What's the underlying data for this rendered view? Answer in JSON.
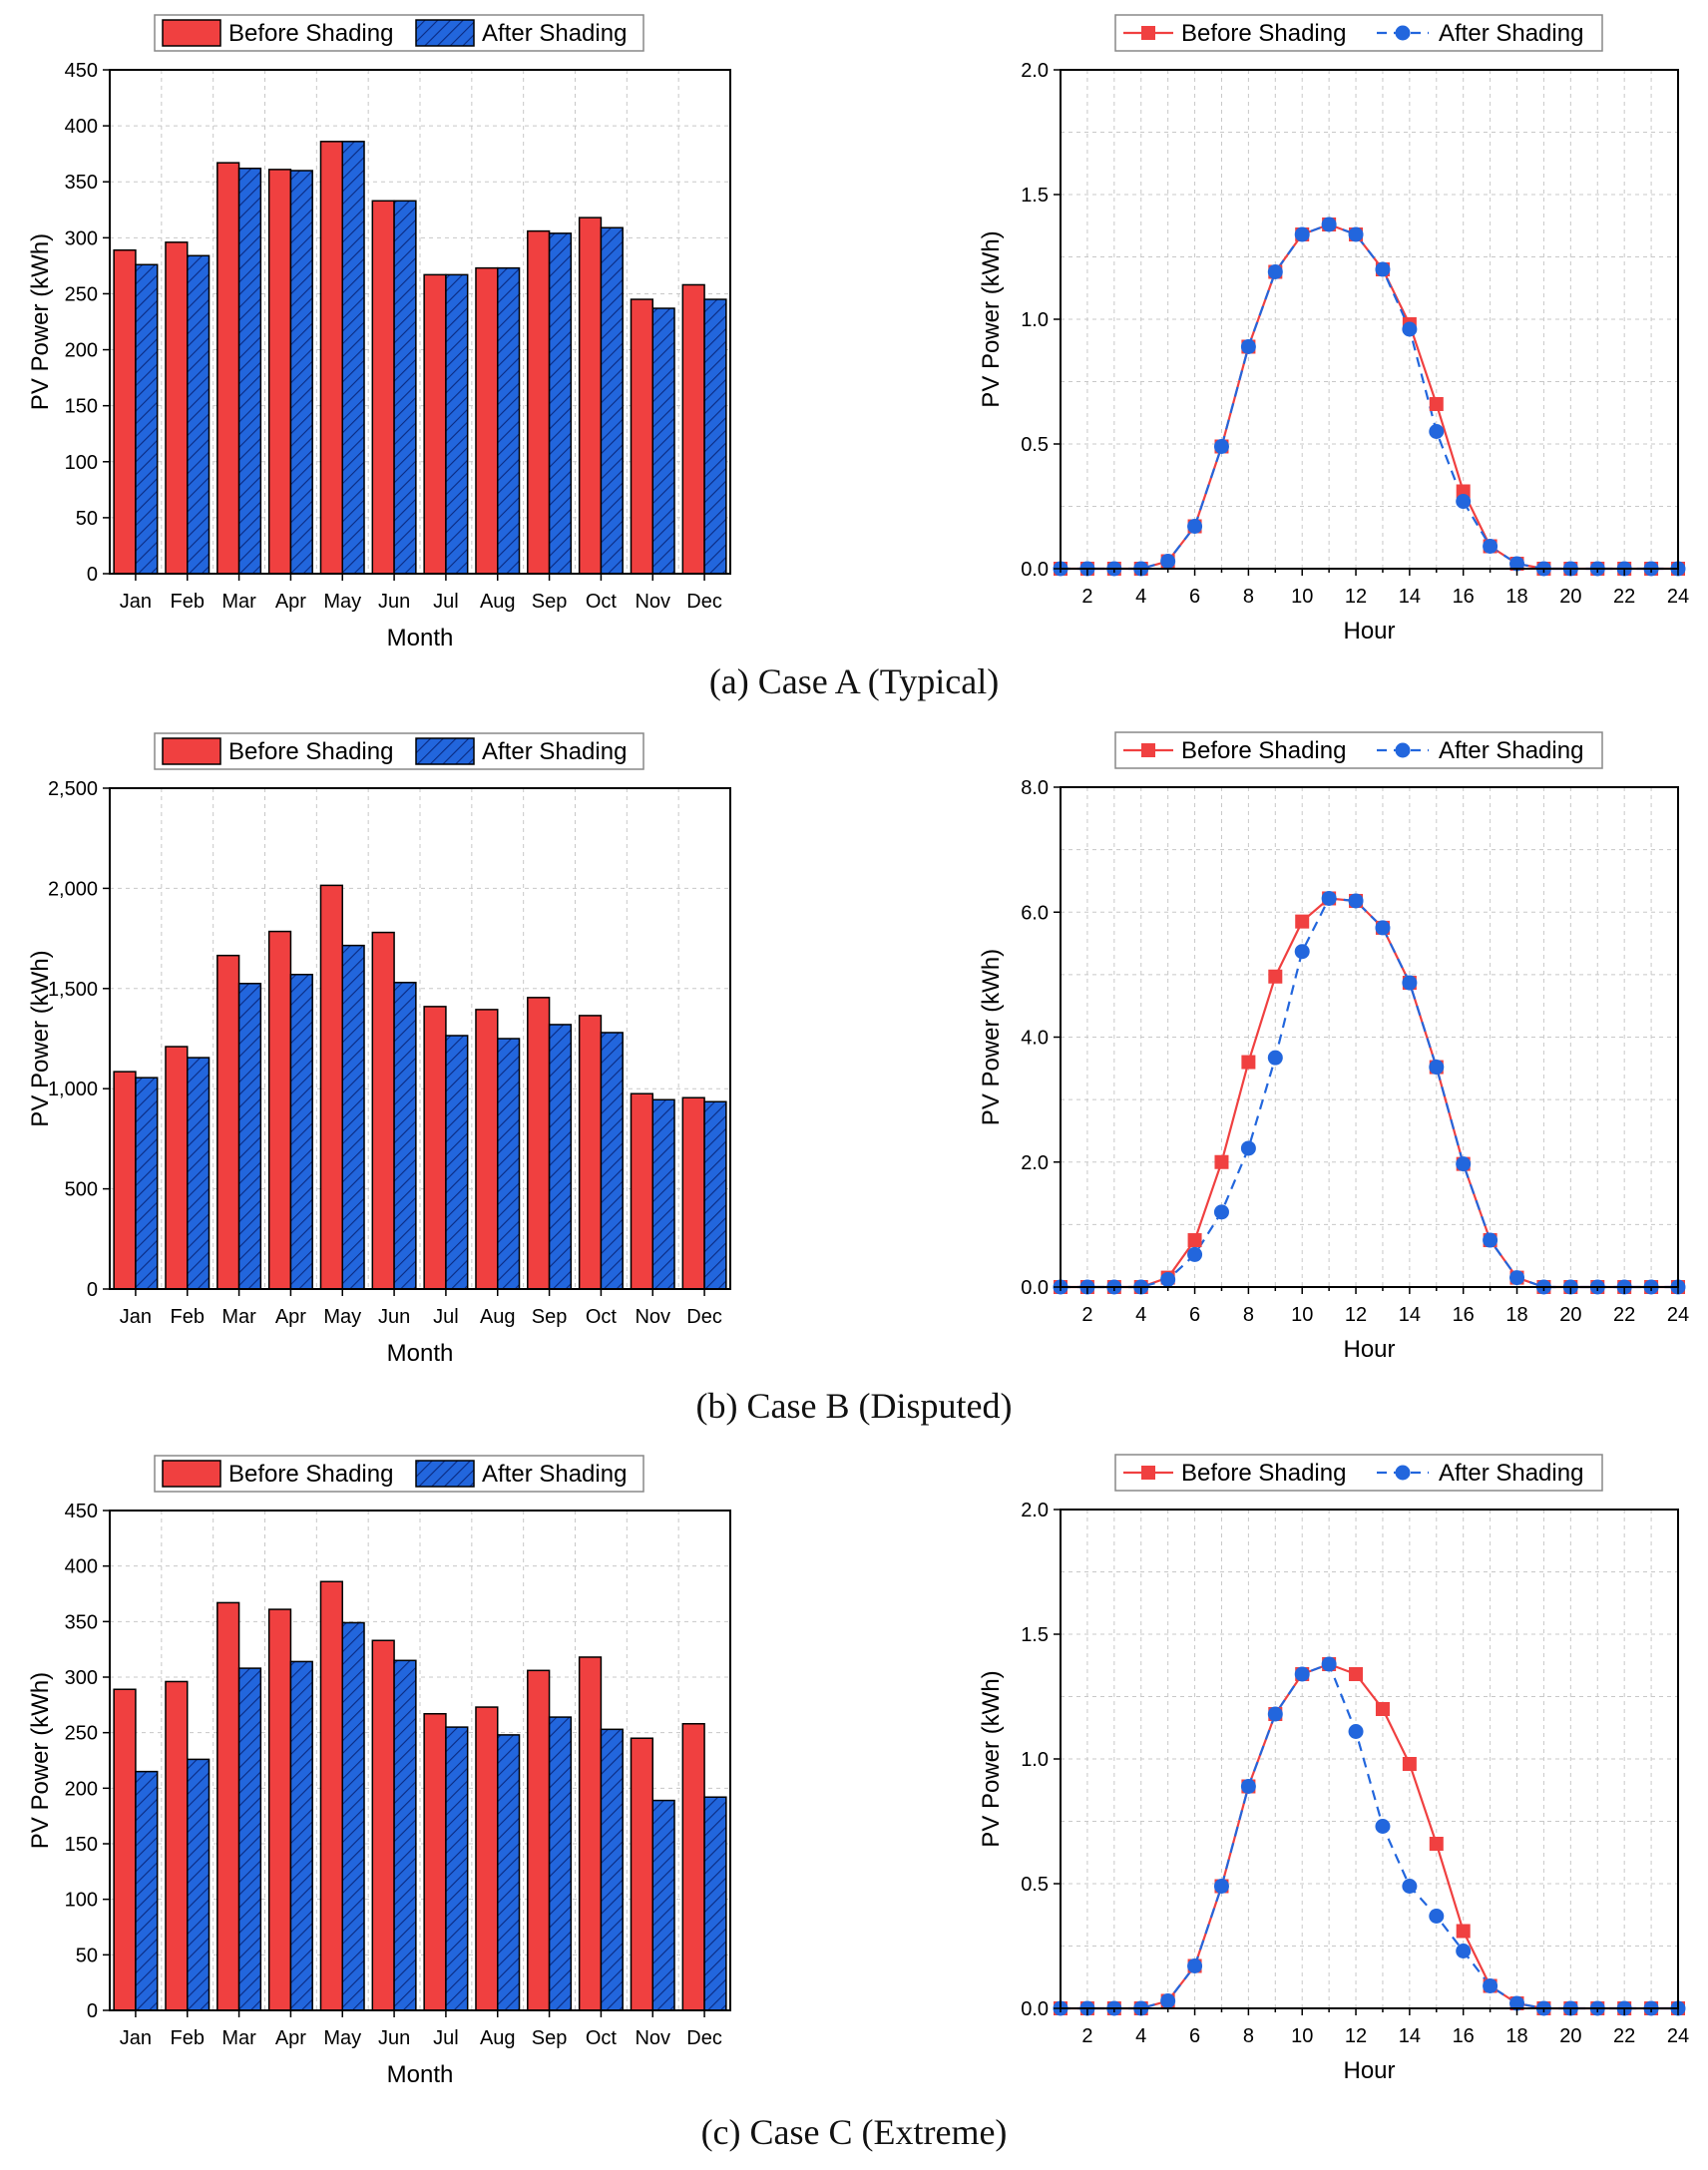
{
  "figure": {
    "captions": [
      "(a) Case A (Typical)",
      "(b) Case B (Disputed)",
      "(c) Case C (Extreme)"
    ]
  },
  "colors": {
    "before": "#f04040",
    "after": "#2266dd",
    "grid": "#c8c8c8",
    "axis": "#000000"
  },
  "chart_data": [
    {
      "type": "bar",
      "title": "(a) Case A (Typical)",
      "categories": [
        "Jan",
        "Feb",
        "Mar",
        "Apr",
        "May",
        "Jun",
        "Jul",
        "Aug",
        "Sep",
        "Oct",
        "Nov",
        "Dec"
      ],
      "series": [
        {
          "name": "Before Shading",
          "values": [
            289,
            296,
            367,
            361,
            386,
            333,
            267,
            273,
            306,
            318,
            245,
            258
          ]
        },
        {
          "name": "After Shading",
          "values": [
            276,
            284,
            362,
            360,
            386,
            333,
            267,
            273,
            304,
            309,
            237,
            245
          ]
        }
      ],
      "xlabel": "Month",
      "ylabel": "PV Power (kWh)",
      "ylim": [
        0,
        450
      ],
      "yticks": [
        0,
        50,
        100,
        150,
        200,
        250,
        300,
        350,
        400,
        450
      ],
      "yticklabels": [
        "0",
        "50",
        "100",
        "150",
        "200",
        "250",
        "300",
        "350",
        "400",
        "450"
      ],
      "legend": "top",
      "grid": true
    },
    {
      "type": "line",
      "title": "(a) Case A (Typical)",
      "x": [
        1,
        2,
        3,
        4,
        5,
        6,
        7,
        8,
        9,
        10,
        11,
        12,
        13,
        14,
        15,
        16,
        17,
        18,
        19,
        20,
        21,
        22,
        23,
        24
      ],
      "series": [
        {
          "name": "Before Shading",
          "values": [
            0,
            0,
            0,
            0,
            0.03,
            0.17,
            0.49,
            0.89,
            1.19,
            1.34,
            1.38,
            1.34,
            1.2,
            0.98,
            0.66,
            0.31,
            0.09,
            0.02,
            0,
            0,
            0,
            0,
            0,
            0
          ]
        },
        {
          "name": "After Shading",
          "values": [
            0,
            0,
            0,
            0,
            0.03,
            0.17,
            0.49,
            0.89,
            1.19,
            1.34,
            1.38,
            1.34,
            1.2,
            0.96,
            0.55,
            0.27,
            0.09,
            0.02,
            0,
            0,
            0,
            0,
            0,
            0
          ]
        }
      ],
      "xlabel": "Hour",
      "ylabel": "PV Power (kWh)",
      "xlim": [
        1,
        24
      ],
      "ylim": [
        0,
        2.0
      ],
      "xticks": [
        2,
        4,
        6,
        8,
        10,
        12,
        14,
        16,
        18,
        20,
        22,
        24
      ],
      "yticks": [
        0,
        0.5,
        1.0,
        1.5,
        2.0
      ],
      "yticklabels": [
        "0.0",
        "0.5",
        "1.0",
        "1.5",
        "2.0"
      ],
      "legend": "top",
      "grid": true
    },
    {
      "type": "bar",
      "title": "(b) Case B (Disputed)",
      "categories": [
        "Jan",
        "Feb",
        "Mar",
        "Apr",
        "May",
        "Jun",
        "Jul",
        "Aug",
        "Sep",
        "Oct",
        "Nov",
        "Dec"
      ],
      "series": [
        {
          "name": "Before Shading",
          "values": [
            1085,
            1210,
            1665,
            1785,
            2015,
            1780,
            1410,
            1395,
            1455,
            1365,
            975,
            955
          ]
        },
        {
          "name": "After Shading",
          "values": [
            1055,
            1155,
            1525,
            1570,
            1715,
            1530,
            1265,
            1250,
            1320,
            1280,
            945,
            935
          ]
        }
      ],
      "xlabel": "Month",
      "ylabel": "PV Power (kWh)",
      "ylim": [
        0,
        2500
      ],
      "yticks": [
        0,
        500,
        1000,
        1500,
        2000,
        2500
      ],
      "yticklabels": [
        "0",
        "500",
        "1,000",
        "1,500",
        "2,000",
        "2,500"
      ],
      "legend": "top",
      "grid": true
    },
    {
      "type": "line",
      "title": "(b) Case B (Disputed)",
      "x": [
        1,
        2,
        3,
        4,
        5,
        6,
        7,
        8,
        9,
        10,
        11,
        12,
        13,
        14,
        15,
        16,
        17,
        18,
        19,
        20,
        21,
        22,
        23,
        24
      ],
      "series": [
        {
          "name": "Before Shading",
          "values": [
            0,
            0,
            0,
            0,
            0.15,
            0.75,
            2.0,
            3.6,
            4.97,
            5.85,
            6.22,
            6.18,
            5.75,
            4.87,
            3.52,
            1.97,
            0.75,
            0.15,
            0,
            0,
            0,
            0,
            0,
            0
          ]
        },
        {
          "name": "After Shading",
          "values": [
            0,
            0,
            0,
            0,
            0.12,
            0.52,
            1.2,
            2.22,
            3.67,
            5.37,
            6.22,
            6.18,
            5.75,
            4.87,
            3.52,
            1.97,
            0.75,
            0.15,
            0,
            0,
            0,
            0,
            0,
            0
          ]
        }
      ],
      "xlabel": "Hour",
      "ylabel": "PV Power (kWh)",
      "xlim": [
        1,
        24
      ],
      "ylim": [
        0,
        8.0
      ],
      "xticks": [
        2,
        4,
        6,
        8,
        10,
        12,
        14,
        16,
        18,
        20,
        22,
        24
      ],
      "yticks": [
        0,
        2,
        4,
        6,
        8
      ],
      "yticklabels": [
        "0.0",
        "2.0",
        "4.0",
        "6.0",
        "8.0"
      ],
      "legend": "top",
      "grid": true
    },
    {
      "type": "bar",
      "title": "(c) Case C (Extreme)",
      "categories": [
        "Jan",
        "Feb",
        "Mar",
        "Apr",
        "May",
        "Jun",
        "Jul",
        "Aug",
        "Sep",
        "Oct",
        "Nov",
        "Dec"
      ],
      "series": [
        {
          "name": "Before Shading",
          "values": [
            289,
            296,
            367,
            361,
            386,
            333,
            267,
            273,
            306,
            318,
            245,
            258
          ]
        },
        {
          "name": "After Shading",
          "values": [
            215,
            226,
            308,
            314,
            349,
            315,
            255,
            248,
            264,
            253,
            189,
            192
          ]
        }
      ],
      "xlabel": "Month",
      "ylabel": "PV Power (kWh)",
      "ylim": [
        0,
        450
      ],
      "yticks": [
        0,
        50,
        100,
        150,
        200,
        250,
        300,
        350,
        400,
        450
      ],
      "yticklabels": [
        "0",
        "50",
        "100",
        "150",
        "200",
        "250",
        "300",
        "350",
        "400",
        "450"
      ],
      "legend": "top",
      "grid": true
    },
    {
      "type": "line",
      "title": "(c) Case C (Extreme)",
      "x": [
        1,
        2,
        3,
        4,
        5,
        6,
        7,
        8,
        9,
        10,
        11,
        12,
        13,
        14,
        15,
        16,
        17,
        18,
        19,
        20,
        21,
        22,
        23,
        24
      ],
      "series": [
        {
          "name": "Before Shading",
          "values": [
            0,
            0,
            0,
            0,
            0.03,
            0.17,
            0.49,
            0.89,
            1.18,
            1.34,
            1.38,
            1.34,
            1.2,
            0.98,
            0.66,
            0.31,
            0.09,
            0.02,
            0,
            0,
            0,
            0,
            0,
            0
          ]
        },
        {
          "name": "After Shading",
          "values": [
            0,
            0,
            0,
            0,
            0.03,
            0.17,
            0.49,
            0.89,
            1.18,
            1.34,
            1.38,
            1.11,
            0.73,
            0.49,
            0.37,
            0.23,
            0.09,
            0.02,
            0,
            0,
            0,
            0,
            0,
            0
          ]
        }
      ],
      "xlabel": "Hour",
      "ylabel": "PV Power (kWh)",
      "xlim": [
        1,
        24
      ],
      "ylim": [
        0,
        2.0
      ],
      "xticks": [
        2,
        4,
        6,
        8,
        10,
        12,
        14,
        16,
        18,
        20,
        22,
        24
      ],
      "yticks": [
        0,
        0.5,
        1.0,
        1.5,
        2.0
      ],
      "yticklabels": [
        "0.0",
        "0.5",
        "1.0",
        "1.5",
        "2.0"
      ],
      "legend": "top",
      "grid": true
    }
  ]
}
